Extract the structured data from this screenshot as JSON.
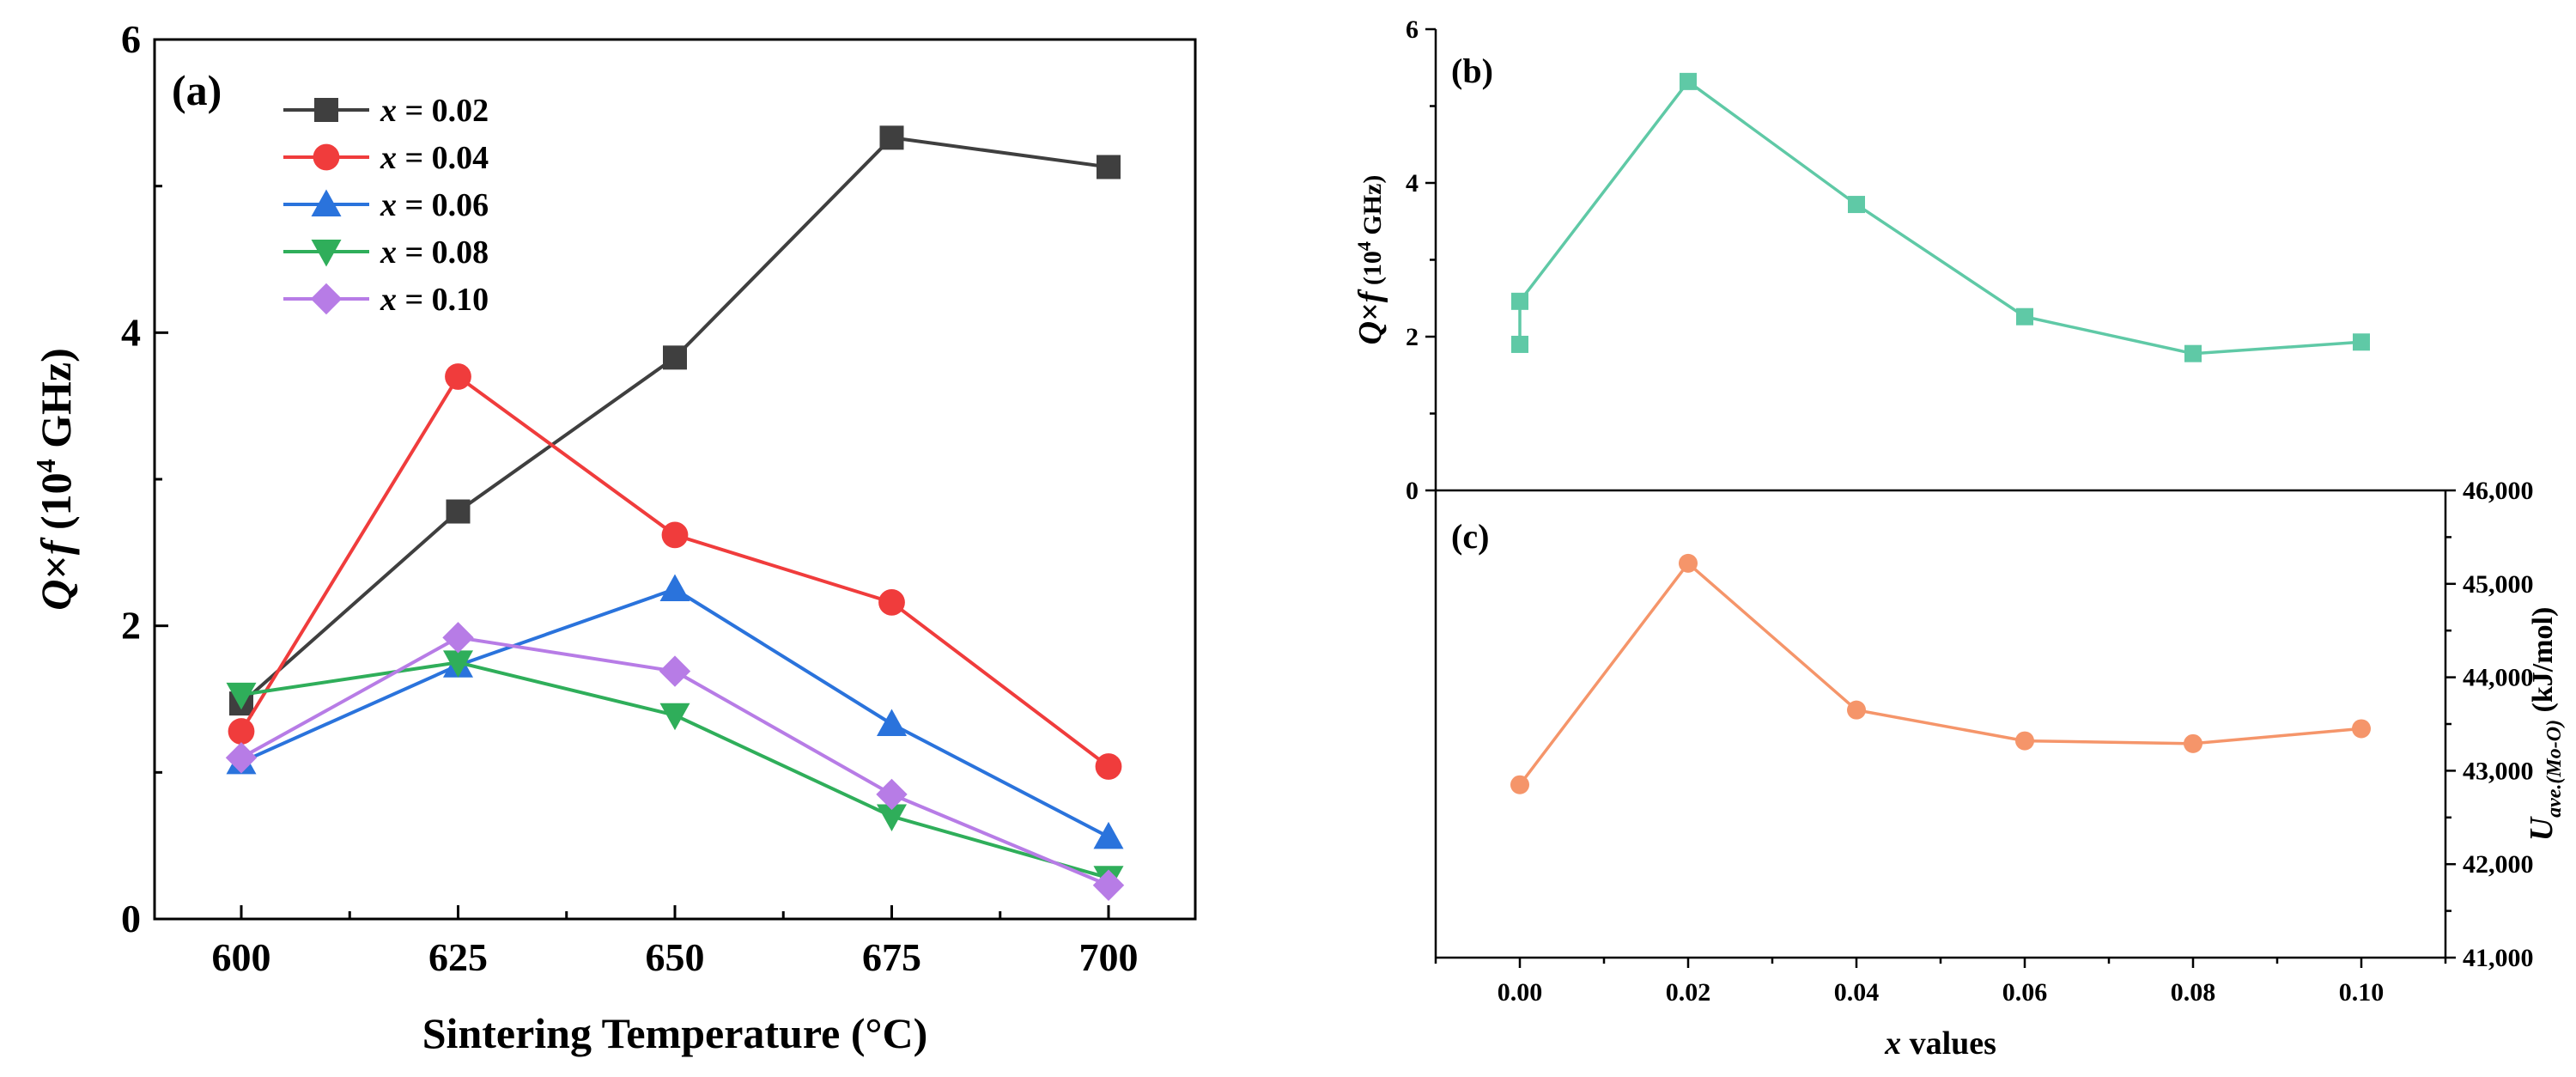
{
  "chart_data": [
    {
      "panel": "(a)",
      "type": "line",
      "xlabel": "Sintering Temperature (°C)",
      "ylabel": "Q×f (10⁴ GHz)",
      "ylabel_parts": [
        "Q",
        "×",
        "f",
        " (10",
        "4",
        " GHz)"
      ],
      "xlim": [
        590,
        710
      ],
      "ylim": [
        0,
        6
      ],
      "x": [
        600,
        625,
        650,
        675,
        700
      ],
      "x_ticks": [
        "600",
        "625",
        "650",
        "675",
        "700"
      ],
      "y_ticks": [
        "0",
        "2",
        "4",
        "6"
      ],
      "legend_position": "top-left",
      "series": [
        {
          "name": "x = 0.02",
          "name_parts": [
            "x",
            " = 0.02"
          ],
          "marker": "square",
          "color": "#3f3f3f",
          "values": [
            1.47,
            2.78,
            3.83,
            5.33,
            5.13
          ]
        },
        {
          "name": "x = 0.04",
          "name_parts": [
            "x",
            " = 0.04"
          ],
          "marker": "circle",
          "color": "#f03c3c",
          "values": [
            1.28,
            3.7,
            2.62,
            2.16,
            1.04
          ]
        },
        {
          "name": "x = 0.06",
          "name_parts": [
            "x",
            " = 0.06"
          ],
          "marker": "triangle-up",
          "color": "#2a73dc",
          "values": [
            1.07,
            1.73,
            2.25,
            1.33,
            0.56
          ]
        },
        {
          "name": "x = 0.08",
          "name_parts": [
            "x",
            " = 0.08"
          ],
          "marker": "triangle-down",
          "color": "#2fae5a",
          "values": [
            1.53,
            1.75,
            1.39,
            0.7,
            0.28
          ]
        },
        {
          "name": "x = 0.10",
          "name_parts": [
            "x",
            " = 0.10"
          ],
          "marker": "diamond",
          "color": "#b77ce6",
          "values": [
            1.1,
            1.92,
            1.69,
            0.85,
            0.23
          ]
        }
      ]
    },
    {
      "panel": "(b)",
      "type": "line",
      "ylabel": "Q×f (10⁴ GHz)",
      "ylabel_parts": [
        "Q",
        "×",
        "f",
        " (10",
        "4",
        " GHz)"
      ],
      "xlim": [
        -0.01,
        0.11
      ],
      "ylim": [
        0,
        6
      ],
      "y_ticks": [
        "0",
        "2",
        "4",
        "6"
      ],
      "series": [
        {
          "marker": "square",
          "color": "#5fc9a6",
          "points": [
            [
              0.0,
              1.9
            ],
            [
              0.0,
              2.46
            ],
            [
              0.02,
              5.32
            ],
            [
              0.04,
              3.72
            ],
            [
              0.06,
              2.26
            ],
            [
              0.08,
              1.78
            ],
            [
              0.1,
              1.93
            ]
          ]
        }
      ]
    },
    {
      "panel": "(c)",
      "type": "line",
      "xlabel": "x values",
      "xlabel_parts": [
        "x",
        " values"
      ],
      "ylabel": "Uave.(Mo-O) (kJ/mol)",
      "ylabel_parts": [
        "U",
        "ave.(Mo-O)",
        " (kJ/mol)"
      ],
      "y_axis_side": "right",
      "xlim": [
        -0.01,
        0.11
      ],
      "ylim": [
        41000,
        46000
      ],
      "x_tick_values": [
        0.0,
        0.02,
        0.04,
        0.06,
        0.08,
        0.1
      ],
      "x_ticks": [
        "0.00",
        "0.02",
        "0.04",
        "0.06",
        "0.08",
        "0.10"
      ],
      "y_ticks": [
        "41,000",
        "42,000",
        "43,000",
        "44,000",
        "45,000",
        "46,000"
      ],
      "series": [
        {
          "marker": "circle",
          "color": "#f5956a",
          "points": [
            [
              0.0,
              42850
            ],
            [
              0.02,
              45220
            ],
            [
              0.04,
              43650
            ],
            [
              0.06,
              43320
            ],
            [
              0.08,
              43290
            ],
            [
              0.1,
              43450
            ]
          ]
        }
      ]
    }
  ]
}
